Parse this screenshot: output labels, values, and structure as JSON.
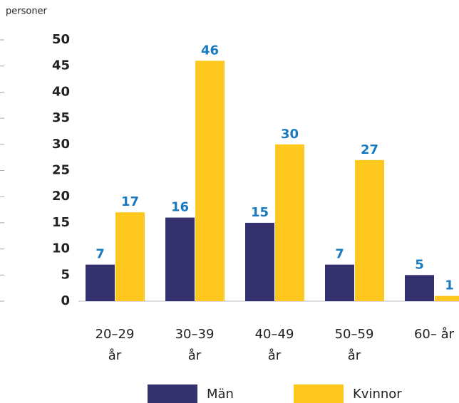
{
  "chart_data": {
    "type": "bar",
    "y_axis_label": "personer",
    "categories": [
      "20–29 år",
      "30–39 år",
      "40–49 år",
      "50–59 år",
      "60– år"
    ],
    "series": [
      {
        "name": "Män",
        "color": "#35306e",
        "values": [
          7,
          16,
          15,
          7,
          5
        ]
      },
      {
        "name": "Kvinnor",
        "color": "#ffc81e",
        "values": [
          17,
          46,
          30,
          27,
          1
        ]
      }
    ],
    "ylim": [
      0,
      50
    ],
    "yticks": [
      0,
      5,
      10,
      15,
      20,
      25,
      30,
      35,
      40,
      45,
      50
    ],
    "value_label_color": "#1a7abf"
  }
}
